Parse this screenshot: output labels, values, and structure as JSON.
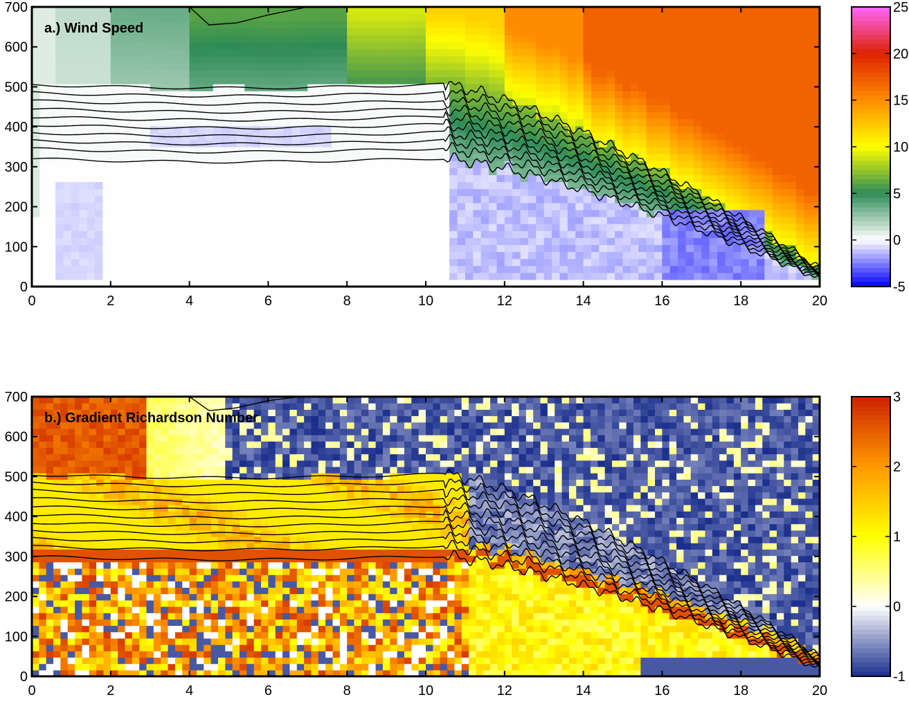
{
  "chart_data": [
    {
      "type": "heatmap",
      "title": "a.) Wind Speed",
      "xlabel": "",
      "ylabel": "",
      "xlim": [
        0,
        20
      ],
      "ylim": [
        0,
        700
      ],
      "xticks": [
        0,
        2,
        4,
        6,
        8,
        10,
        12,
        14,
        16,
        18,
        20
      ],
      "yticks": [
        0,
        100,
        200,
        300,
        400,
        500,
        600,
        700
      ],
      "colorbar": {
        "range": [
          -5,
          25
        ],
        "ticks": [
          -5,
          0,
          5,
          10,
          15,
          20,
          25
        ],
        "colors": [
          "#0000ff",
          "#ffffff",
          "#2e8b57",
          "#ffff00",
          "#ff8c00",
          "#dd2200",
          "#ff66ff"
        ]
      },
      "contours": {
        "levels": [
          320,
          345,
          365,
          385,
          405,
          425,
          445,
          465,
          485,
          505
        ],
        "descent": {
          "start_x": 10.5,
          "end_x": 20,
          "end_y": 20
        },
        "upper_contour": [
          [
            4,
            700
          ],
          [
            4.5,
            655
          ],
          [
            5.2,
            660
          ],
          [
            6,
            680
          ],
          [
            7,
            700
          ]
        ]
      },
      "regions": {
        "top_layer": [
          {
            "x0": 0,
            "x1": 2,
            "value": 1.5
          },
          {
            "x0": 2,
            "x1": 4,
            "value": 3.5
          },
          {
            "x0": 4,
            "x1": 8,
            "value": 6
          },
          {
            "x0": 8,
            "x1": 10,
            "value": 9
          },
          {
            "x0": 10,
            "x1": 12,
            "value": 12
          },
          {
            "x0": 12,
            "x1": 14,
            "value": 15
          },
          {
            "x0": 14,
            "x1": 20,
            "value": 17
          }
        ],
        "negative_patches": [
          {
            "x0": 0.7,
            "x1": 1.8,
            "y0": 25,
            "y1": 270,
            "value": -1
          },
          {
            "x0": 3.0,
            "x1": 7.5,
            "y0": 350,
            "y1": 400,
            "value": -1
          },
          {
            "x0": 16,
            "x1": 18.5,
            "y0": 20,
            "y1": 200,
            "value": -3
          }
        ]
      }
    },
    {
      "type": "heatmap",
      "title": "b.) Gradient Richardson Number",
      "xlabel": "",
      "ylabel": "",
      "xlim": [
        0,
        20
      ],
      "ylim": [
        0,
        700
      ],
      "xticks": [
        0,
        2,
        4,
        6,
        8,
        10,
        12,
        14,
        16,
        18,
        20
      ],
      "yticks": [
        0,
        100,
        200,
        300,
        400,
        500,
        600,
        700
      ],
      "colorbar": {
        "range": [
          -1,
          3
        ],
        "ticks": [
          -1,
          0,
          1,
          2,
          3
        ],
        "colors": [
          "#1a2e8c",
          "#ffffff",
          "#ffff00",
          "#ff9900",
          "#cc2200"
        ]
      },
      "contours": {
        "levels": [
          300,
          325,
          345,
          365,
          385,
          405,
          425,
          445,
          465,
          485,
          505
        ],
        "descent": {
          "start_x": 10.5,
          "end_x": 20,
          "end_y": 20
        },
        "upper_contour": [
          [
            4,
            700
          ],
          [
            4.5,
            665
          ],
          [
            5.2,
            672
          ],
          [
            6,
            690
          ],
          [
            6.8,
            700
          ]
        ]
      },
      "regions": {
        "top_left_high": {
          "x0": 0,
          "x1": 3,
          "y0": 500,
          "y1": 700,
          "value": 2.8
        },
        "stable_band": {
          "y0": 280,
          "y1": 500,
          "value": 1.2
        },
        "unstable_upper": {
          "x0": 5,
          "x1": 20,
          "y0": 500,
          "y1": 700,
          "value": -0.6
        },
        "noisy_lower": {
          "y0": 0,
          "y1": 280
        }
      }
    }
  ]
}
